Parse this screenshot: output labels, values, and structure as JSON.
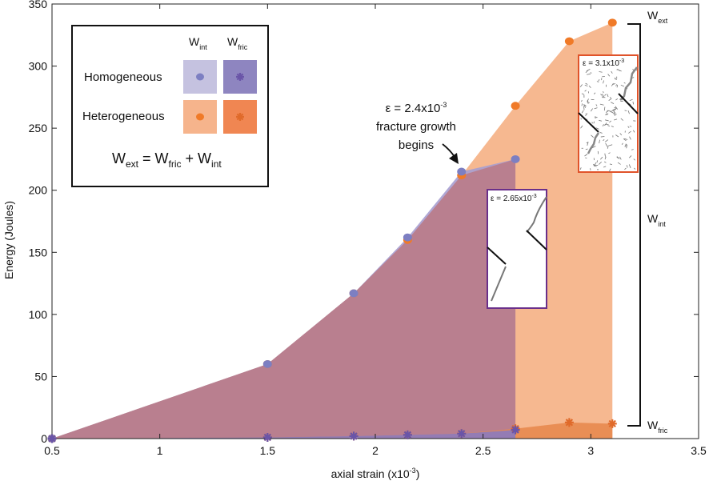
{
  "chart_data": {
    "type": "area",
    "xlabel": "axial strain (x10",
    "xlabel_sup": "-3",
    "xlabel_end": ")",
    "ylabel": "Energy (Joules)",
    "xlim": [
      0.5,
      3.5
    ],
    "ylim": [
      0,
      350
    ],
    "xticks": [
      "0.5",
      "1",
      "1.5",
      "2",
      "2.5",
      "3",
      "3.5"
    ],
    "yticks": [
      "0",
      "50",
      "100",
      "150",
      "200",
      "250",
      "300",
      "350"
    ],
    "series": [
      {
        "key": "hom_int",
        "x": [
          0.5,
          1.5,
          1.9,
          2.15,
          2.4,
          2.65
        ],
        "y": [
          0,
          60,
          117,
          162,
          215,
          225
        ],
        "color": "#7d7fc2",
        "fill": "#a79ed0",
        "marker": "circle"
      },
      {
        "key": "het_int",
        "x": [
          0.5,
          1.5,
          1.9,
          2.15,
          2.4,
          2.65,
          2.9,
          3.1
        ],
        "y": [
          0,
          60,
          117,
          160,
          212,
          268,
          320,
          335
        ],
        "color": "#f07a28",
        "fill": "#f5b48a",
        "marker": "circle"
      },
      {
        "key": "hom_fric",
        "x": [
          0.5,
          1.5,
          1.9,
          2.15,
          2.4,
          2.65
        ],
        "y": [
          0,
          1,
          2,
          3,
          4,
          7
        ],
        "color": "#6a55a8",
        "fill": "#8b7bbf",
        "marker": "star"
      },
      {
        "key": "het_fric",
        "x": [
          0.5,
          1.5,
          1.9,
          2.15,
          2.4,
          2.65,
          2.9,
          3.1
        ],
        "y": [
          0,
          1,
          2,
          3,
          4,
          8,
          13,
          12
        ],
        "color": "#e06a2a",
        "fill": "#e8894f",
        "marker": "star"
      }
    ],
    "legend": {
      "col_int": "W",
      "col_int_sub": "int",
      "col_fric": "W",
      "col_fric_sub": "fric",
      "row_hom": "Homogeneous",
      "row_het": "Heterogeneous",
      "eq_lhs": "W",
      "eq_lhs_sub": "ext",
      "eq_eq": " = W",
      "eq_mid_sub": "fric",
      "eq_plus": " + W",
      "eq_rhs_sub": "int",
      "placement": "top-left"
    },
    "annotation_fracture": {
      "line1": "ε = 2.4x10",
      "line1_sup": "-3",
      "line2": "fracture growth",
      "line3": "begins"
    },
    "inset_hom": {
      "label": "ε = 2.65x10",
      "label_sup": "-3",
      "border": "#6a2f8a"
    },
    "inset_het": {
      "label": "ε = 3.1x10",
      "label_sup": "-3",
      "border": "#e0532a"
    },
    "brackets": {
      "ext": "W",
      "ext_sub": "ext",
      "int": "W",
      "int_sub": "int",
      "fric": "W",
      "fric_sub": "fric"
    },
    "overlap_fill": "#b97f8f"
  }
}
